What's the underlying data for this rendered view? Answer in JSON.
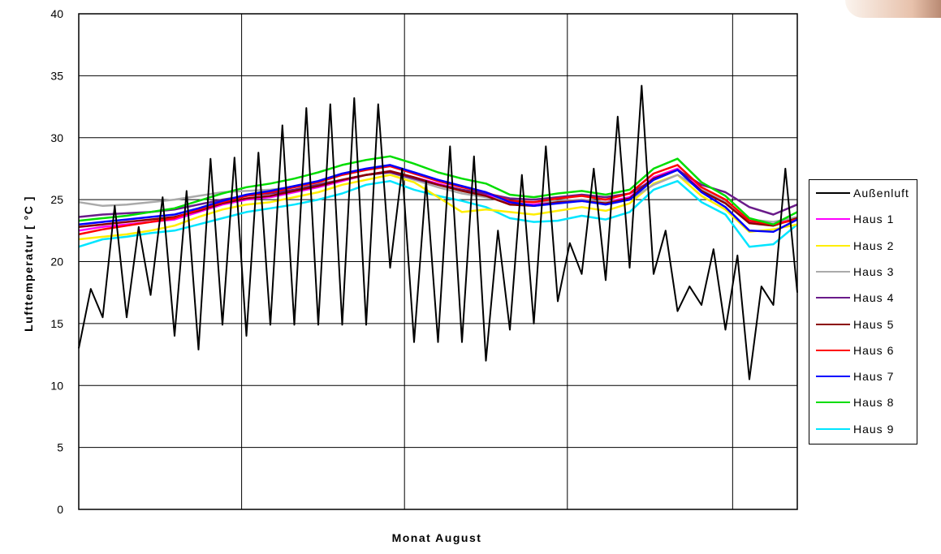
{
  "chart_data": {
    "type": "line",
    "title": "",
    "xlabel": "Monat August",
    "ylabel": "Lufttemperatur  [ °C ]",
    "xlim": [
      1,
      31
    ],
    "ylim": [
      0,
      40
    ],
    "yticks": [
      0,
      5,
      10,
      15,
      20,
      25,
      30,
      35,
      40
    ],
    "vertical_grid_x": [
      7.8,
      14.6,
      21.4,
      28.3
    ],
    "grid": true,
    "legend_position": "right",
    "series": [
      {
        "name": "Haus 9",
        "color": "#00e5ff",
        "x": [
          1,
          2,
          3,
          4,
          5,
          6,
          7,
          8,
          9,
          10,
          11,
          12,
          13,
          14,
          15,
          16,
          17,
          18,
          19,
          20,
          21,
          22,
          23,
          24,
          25,
          26,
          27,
          28,
          29,
          30,
          31
        ],
        "y": [
          21.2,
          21.8,
          22.0,
          22.3,
          22.5,
          23.0,
          23.5,
          24.0,
          24.3,
          24.6,
          25.0,
          25.5,
          26.2,
          26.5,
          25.8,
          25.3,
          24.9,
          24.4,
          23.5,
          23.2,
          23.3,
          23.7,
          23.4,
          24.0,
          25.8,
          26.5,
          24.8,
          23.8,
          21.2,
          21.4,
          23.0
        ]
      },
      {
        "name": "Haus 1",
        "color": "#ff00ff",
        "x": [
          1,
          2,
          3,
          4,
          5,
          6,
          7,
          8,
          9,
          10,
          11,
          12,
          13,
          14,
          15,
          16,
          17,
          18,
          19,
          20,
          21,
          22,
          23,
          24,
          25,
          26,
          27,
          28,
          29,
          30,
          31
        ],
        "y": [
          22.5,
          22.8,
          23.0,
          23.2,
          23.4,
          24.0,
          24.6,
          25.0,
          25.2,
          25.6,
          26.0,
          26.5,
          27.0,
          27.3,
          26.8,
          26.3,
          25.8,
          25.4,
          24.7,
          24.6,
          24.9,
          25.0,
          24.8,
          25.2,
          26.8,
          27.5,
          25.8,
          24.8,
          23.2,
          23.0,
          23.6
        ]
      },
      {
        "name": "Haus 2",
        "color": "#ffee00",
        "x": [
          1,
          2,
          3,
          4,
          5,
          6,
          7,
          8,
          9,
          10,
          11,
          12,
          13,
          14,
          15,
          16,
          17,
          18,
          19,
          20,
          21,
          22,
          23,
          24,
          25,
          26,
          27,
          28,
          29,
          30,
          31
        ],
        "y": [
          21.8,
          22.0,
          22.2,
          22.5,
          22.9,
          23.6,
          24.2,
          24.6,
          24.8,
          25.2,
          25.6,
          26.2,
          26.6,
          27.0,
          26.4,
          25.2,
          24.0,
          24.2,
          24.0,
          23.8,
          24.1,
          24.4,
          24.1,
          24.7,
          26.3,
          27.0,
          25.3,
          24.2,
          22.4,
          22.6,
          23.0
        ]
      },
      {
        "name": "Haus 3",
        "color": "#aaaaaa",
        "x": [
          1,
          2,
          3,
          4,
          5,
          6,
          7,
          8,
          9,
          10,
          11,
          12,
          13,
          14,
          15,
          16,
          17,
          18,
          19,
          20,
          21,
          22,
          23,
          24,
          25,
          26,
          27,
          28,
          29,
          30,
          31
        ],
        "y": [
          24.8,
          24.5,
          24.6,
          24.8,
          25.0,
          25.3,
          25.6,
          25.7,
          25.8,
          26.0,
          26.3,
          26.6,
          27.0,
          27.2,
          26.6,
          26.0,
          25.5,
          25.2,
          24.9,
          24.8,
          24.9,
          25.0,
          24.8,
          25.0,
          26.2,
          27.0,
          25.8,
          24.8,
          23.4,
          23.2,
          23.6
        ]
      },
      {
        "name": "Haus 4",
        "color": "#6a1b8a",
        "x": [
          1,
          2,
          3,
          4,
          5,
          6,
          7,
          8,
          9,
          10,
          11,
          12,
          13,
          14,
          15,
          16,
          17,
          18,
          19,
          20,
          21,
          22,
          23,
          24,
          25,
          26,
          27,
          28,
          29,
          30,
          31
        ],
        "y": [
          23.6,
          23.8,
          23.9,
          24.0,
          24.2,
          24.6,
          25.0,
          25.3,
          25.5,
          25.8,
          26.2,
          26.6,
          27.0,
          27.2,
          26.7,
          26.2,
          25.8,
          25.5,
          25.1,
          25.0,
          25.2,
          25.4,
          25.2,
          25.5,
          26.6,
          27.4,
          26.2,
          25.6,
          24.4,
          23.8,
          24.6
        ]
      },
      {
        "name": "Haus 5",
        "color": "#8b0000",
        "x": [
          1,
          2,
          3,
          4,
          5,
          6,
          7,
          8,
          9,
          10,
          11,
          12,
          13,
          14,
          15,
          16,
          17,
          18,
          19,
          20,
          21,
          22,
          23,
          24,
          25,
          26,
          27,
          28,
          29,
          30,
          31
        ],
        "y": [
          22.8,
          23.0,
          23.2,
          23.4,
          23.6,
          24.1,
          24.7,
          25.1,
          25.3,
          25.7,
          26.1,
          26.6,
          27.0,
          27.3,
          26.8,
          26.2,
          25.7,
          25.3,
          24.6,
          24.5,
          24.8,
          24.9,
          24.7,
          25.1,
          26.7,
          27.4,
          25.7,
          24.7,
          23.1,
          22.9,
          23.5
        ]
      },
      {
        "name": "Haus 6",
        "color": "#ff0000",
        "x": [
          1,
          2,
          3,
          4,
          5,
          6,
          7,
          8,
          9,
          10,
          11,
          12,
          13,
          14,
          15,
          16,
          17,
          18,
          19,
          20,
          21,
          22,
          23,
          24,
          25,
          26,
          27,
          28,
          29,
          30,
          31
        ],
        "y": [
          22.2,
          22.6,
          22.9,
          23.2,
          23.5,
          24.2,
          24.8,
          25.3,
          25.6,
          26.0,
          26.4,
          27.0,
          27.4,
          27.7,
          27.1,
          26.5,
          26.0,
          25.6,
          24.9,
          24.8,
          25.1,
          25.3,
          25.0,
          25.5,
          27.1,
          27.8,
          26.0,
          25.0,
          23.3,
          23.0,
          23.4
        ]
      },
      {
        "name": "Haus 7",
        "color": "#0000ff",
        "x": [
          1,
          2,
          3,
          4,
          5,
          6,
          7,
          8,
          9,
          10,
          11,
          12,
          13,
          14,
          15,
          16,
          17,
          18,
          19,
          20,
          21,
          22,
          23,
          24,
          25,
          26,
          27,
          28,
          29,
          30,
          31
        ],
        "y": [
          23.0,
          23.2,
          23.4,
          23.6,
          23.8,
          24.3,
          24.9,
          25.4,
          25.7,
          26.1,
          26.5,
          27.1,
          27.5,
          27.8,
          27.2,
          26.6,
          26.1,
          25.6,
          24.8,
          24.5,
          24.7,
          24.9,
          24.6,
          25.0,
          26.6,
          27.4,
          25.6,
          24.4,
          22.5,
          22.4,
          23.4
        ]
      },
      {
        "name": "Haus 8",
        "color": "#00dd00",
        "x": [
          1,
          2,
          3,
          4,
          5,
          6,
          7,
          8,
          9,
          10,
          11,
          12,
          13,
          14,
          15,
          16,
          17,
          18,
          19,
          20,
          21,
          22,
          23,
          24,
          25,
          26,
          27,
          28,
          29,
          30,
          31
        ],
        "y": [
          23.3,
          23.5,
          23.7,
          24.0,
          24.3,
          24.9,
          25.5,
          26.0,
          26.3,
          26.7,
          27.2,
          27.8,
          28.2,
          28.5,
          27.9,
          27.2,
          26.7,
          26.3,
          25.4,
          25.2,
          25.5,
          25.7,
          25.4,
          25.8,
          27.5,
          28.3,
          26.4,
          25.3,
          23.5,
          23.0,
          24.0
        ]
      },
      {
        "name": "Außenluft",
        "color": "#000000",
        "x": [
          1.0,
          1.5,
          2.0,
          2.5,
          3.0,
          3.5,
          4.0,
          4.5,
          5.0,
          5.5,
          6.0,
          6.5,
          7.0,
          7.5,
          8.0,
          8.5,
          9.0,
          9.5,
          10.0,
          10.5,
          11.0,
          11.5,
          12.0,
          12.5,
          13.0,
          13.5,
          14.0,
          14.5,
          15.0,
          15.5,
          16.0,
          16.5,
          17.0,
          17.5,
          18.0,
          18.5,
          19.0,
          19.5,
          20.0,
          20.5,
          21.0,
          21.5,
          22.0,
          22.5,
          23.0,
          23.5,
          24.0,
          24.5,
          25.0,
          25.5,
          26.0,
          26.5,
          27.0,
          27.5,
          28.0,
          28.5,
          29.0,
          29.5,
          30.0,
          30.5,
          31.0
        ],
        "y": [
          13.0,
          17.8,
          15.5,
          24.5,
          15.5,
          22.8,
          17.3,
          25.2,
          14.0,
          25.7,
          12.9,
          28.3,
          14.9,
          28.4,
          14.0,
          28.8,
          14.9,
          31.0,
          14.9,
          32.4,
          14.9,
          32.7,
          14.9,
          33.2,
          14.9,
          32.7,
          19.5,
          27.5,
          13.5,
          26.5,
          13.5,
          29.3,
          13.5,
          28.5,
          12.0,
          22.5,
          14.5,
          27.0,
          15.0,
          29.3,
          16.8,
          21.5,
          19.0,
          27.5,
          18.5,
          31.7,
          19.5,
          34.2,
          19.0,
          22.5,
          16.0,
          18.0,
          16.5,
          21.0,
          14.5,
          20.5,
          10.5,
          18.0,
          16.5,
          27.5,
          17.5
        ]
      }
    ],
    "legend": [
      "Außenluft",
      "Haus 1",
      "Haus 2",
      "Haus 3",
      "Haus 4",
      "Haus 5",
      "Haus 6",
      "Haus 7",
      "Haus 8",
      "Haus 9"
    ]
  }
}
